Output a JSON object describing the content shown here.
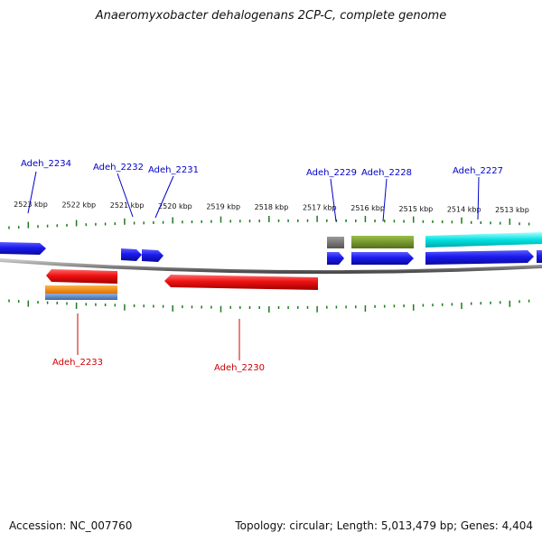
{
  "title": "Anaeromyxobacter dehalogenans 2CP-C, complete genome",
  "footer": {
    "accession": "Accession: NC_007760",
    "summary": "Topology: circular; Length: 5,013,479 bp; Genes: 4,404"
  },
  "colors": {
    "backbone": "#8a8a8a",
    "tick": "#1e7a1e",
    "forward_label": "#0000cc",
    "reverse_label": "#cc0000",
    "forward_cds": "#1a1aee",
    "reverse_cds": "#ee1111",
    "orange_feature": "#ff8c00",
    "steelblue_feature": "#4f7fc0",
    "gray_feature": "#6e6e6e",
    "olive_feature": "#6b8e23",
    "cyan_feature": "#00e0e0"
  },
  "scale": {
    "ticks_kbp": [
      2523,
      2522,
      2521,
      2520,
      2519,
      2518,
      2517,
      2516,
      2515,
      2514,
      2513
    ],
    "unit": "kbp"
  },
  "forward_genes": [
    {
      "name": "Adeh_2234"
    },
    {
      "name": "Adeh_2232"
    },
    {
      "name": "Adeh_2231"
    },
    {
      "name": "Adeh_2229"
    },
    {
      "name": "Adeh_2228"
    },
    {
      "name": "Adeh_2227"
    }
  ],
  "reverse_genes": [
    {
      "name": "Adeh_2233"
    },
    {
      "name": "Adeh_2230"
    }
  ]
}
